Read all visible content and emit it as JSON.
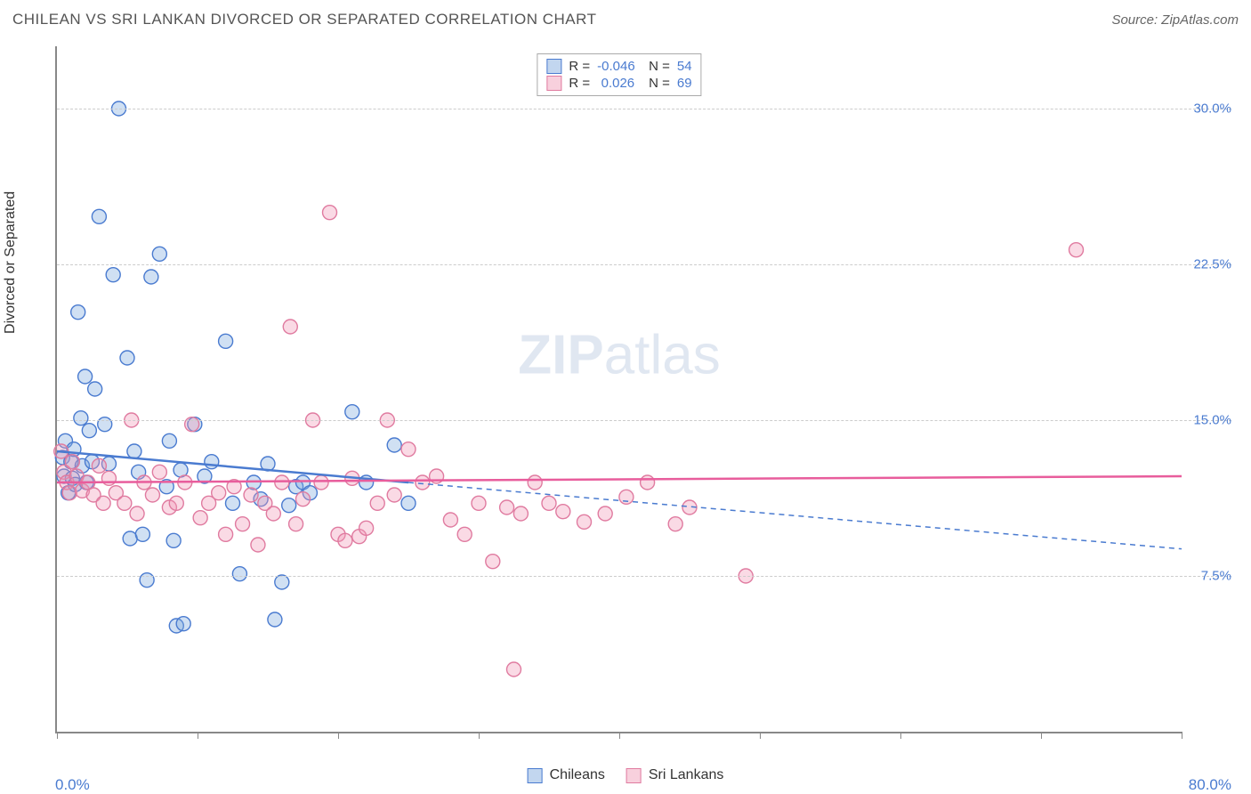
{
  "title": "CHILEAN VS SRI LANKAN DIVORCED OR SEPARATED CORRELATION CHART",
  "source": "Source: ZipAtlas.com",
  "y_axis_label": "Divorced or Separated",
  "x_min_label": "0.0%",
  "x_max_label": "80.0%",
  "watermark_bold": "ZIP",
  "watermark_rest": "atlas",
  "chart": {
    "type": "scatter",
    "xlim": [
      0,
      80
    ],
    "ylim": [
      0,
      33
    ],
    "y_gridlines": [
      7.5,
      15.0,
      22.5,
      30.0
    ],
    "y_tick_labels": [
      "7.5%",
      "15.0%",
      "22.5%",
      "30.0%"
    ],
    "x_ticks": [
      0,
      10,
      20,
      30,
      40,
      50,
      60,
      70,
      80
    ],
    "background_color": "#ffffff",
    "grid_color": "#cccccc",
    "axis_color": "#888888",
    "marker_radius": 8,
    "marker_stroke_width": 1.4,
    "series": [
      {
        "name": "Chileans",
        "fill": "rgba(120,165,220,0.35)",
        "stroke": "#4a7bd0",
        "R": "-0.046",
        "N": "54",
        "trend": {
          "solid": {
            "x1": 0,
            "y1": 13.5,
            "x2": 25,
            "y2": 12.0
          },
          "dashed": {
            "x1": 25,
            "y1": 12.0,
            "x2": 80,
            "y2": 8.8
          },
          "stroke": "#4a7bd0",
          "width": 2.5
        },
        "points": [
          [
            0.4,
            13.2
          ],
          [
            0.5,
            12.3
          ],
          [
            0.6,
            14.0
          ],
          [
            0.8,
            11.5
          ],
          [
            1.0,
            13.0
          ],
          [
            1.1,
            12.2
          ],
          [
            1.2,
            13.6
          ],
          [
            1.3,
            11.9
          ],
          [
            1.5,
            20.2
          ],
          [
            1.7,
            15.1
          ],
          [
            1.8,
            12.8
          ],
          [
            2.0,
            17.1
          ],
          [
            2.1,
            12.0
          ],
          [
            2.3,
            14.5
          ],
          [
            2.5,
            13.0
          ],
          [
            2.7,
            16.5
          ],
          [
            3.0,
            24.8
          ],
          [
            3.4,
            14.8
          ],
          [
            3.7,
            12.9
          ],
          [
            4.0,
            22.0
          ],
          [
            4.4,
            30.0
          ],
          [
            5.0,
            18.0
          ],
          [
            5.2,
            9.3
          ],
          [
            5.5,
            13.5
          ],
          [
            5.8,
            12.5
          ],
          [
            6.1,
            9.5
          ],
          [
            6.4,
            7.3
          ],
          [
            6.7,
            21.9
          ],
          [
            7.3,
            23.0
          ],
          [
            7.8,
            11.8
          ],
          [
            8.0,
            14.0
          ],
          [
            8.3,
            9.2
          ],
          [
            8.5,
            5.1
          ],
          [
            8.8,
            12.6
          ],
          [
            9.0,
            5.2
          ],
          [
            9.8,
            14.8
          ],
          [
            10.5,
            12.3
          ],
          [
            11.0,
            13.0
          ],
          [
            12.0,
            18.8
          ],
          [
            12.5,
            11.0
          ],
          [
            13.0,
            7.6
          ],
          [
            14.0,
            12.0
          ],
          [
            14.5,
            11.2
          ],
          [
            15.0,
            12.9
          ],
          [
            15.5,
            5.4
          ],
          [
            16.0,
            7.2
          ],
          [
            16.5,
            10.9
          ],
          [
            17.0,
            11.8
          ],
          [
            17.5,
            12.0
          ],
          [
            18.0,
            11.5
          ],
          [
            21.0,
            15.4
          ],
          [
            22.0,
            12.0
          ],
          [
            24.0,
            13.8
          ],
          [
            25.0,
            11.0
          ]
        ]
      },
      {
        "name": "Sri Lankans",
        "fill": "rgba(240,150,180,0.35)",
        "stroke": "#e07ba0",
        "R": "0.026",
        "N": "69",
        "trend": {
          "solid": {
            "x1": 0,
            "y1": 12.0,
            "x2": 80,
            "y2": 12.3
          },
          "stroke": "#e85d9c",
          "width": 2.5
        },
        "points": [
          [
            0.3,
            13.5
          ],
          [
            0.5,
            12.5
          ],
          [
            0.7,
            12.0
          ],
          [
            0.9,
            11.5
          ],
          [
            1.1,
            13.0
          ],
          [
            1.4,
            12.3
          ],
          [
            1.8,
            11.6
          ],
          [
            2.2,
            12.0
          ],
          [
            2.6,
            11.4
          ],
          [
            3.0,
            12.8
          ],
          [
            3.3,
            11.0
          ],
          [
            3.7,
            12.2
          ],
          [
            4.2,
            11.5
          ],
          [
            4.8,
            11.0
          ],
          [
            5.3,
            15.0
          ],
          [
            5.7,
            10.5
          ],
          [
            6.2,
            12.0
          ],
          [
            6.8,
            11.4
          ],
          [
            7.3,
            12.5
          ],
          [
            8.0,
            10.8
          ],
          [
            8.5,
            11.0
          ],
          [
            9.1,
            12.0
          ],
          [
            9.6,
            14.8
          ],
          [
            10.2,
            10.3
          ],
          [
            10.8,
            11.0
          ],
          [
            11.5,
            11.5
          ],
          [
            12.0,
            9.5
          ],
          [
            12.6,
            11.8
          ],
          [
            13.2,
            10.0
          ],
          [
            13.8,
            11.4
          ],
          [
            14.3,
            9.0
          ],
          [
            14.8,
            11.0
          ],
          [
            15.4,
            10.5
          ],
          [
            16.0,
            12.0
          ],
          [
            16.6,
            19.5
          ],
          [
            17.0,
            10.0
          ],
          [
            17.5,
            11.2
          ],
          [
            18.2,
            15.0
          ],
          [
            18.8,
            12.0
          ],
          [
            19.4,
            25.0
          ],
          [
            20.0,
            9.5
          ],
          [
            20.5,
            9.2
          ],
          [
            21.0,
            12.2
          ],
          [
            21.5,
            9.4
          ],
          [
            22.0,
            9.8
          ],
          [
            22.8,
            11.0
          ],
          [
            23.5,
            15.0
          ],
          [
            24.0,
            11.4
          ],
          [
            25.0,
            13.6
          ],
          [
            26.0,
            12.0
          ],
          [
            27.0,
            12.3
          ],
          [
            28.0,
            10.2
          ],
          [
            29.0,
            9.5
          ],
          [
            30.0,
            11.0
          ],
          [
            31.0,
            8.2
          ],
          [
            32.0,
            10.8
          ],
          [
            33.0,
            10.5
          ],
          [
            34.0,
            12.0
          ],
          [
            35.0,
            11.0
          ],
          [
            36.0,
            10.6
          ],
          [
            37.5,
            10.1
          ],
          [
            39.0,
            10.5
          ],
          [
            40.5,
            11.3
          ],
          [
            42.0,
            12.0
          ],
          [
            44.0,
            10.0
          ],
          [
            45.0,
            10.8
          ],
          [
            49.0,
            7.5
          ],
          [
            32.5,
            3.0
          ],
          [
            72.5,
            23.2
          ]
        ]
      }
    ]
  },
  "stat_legend": {
    "r_label": "R =",
    "n_label": "N ="
  },
  "bottom_legend": {
    "chileans": "Chileans",
    "srilankans": "Sri Lankans"
  }
}
